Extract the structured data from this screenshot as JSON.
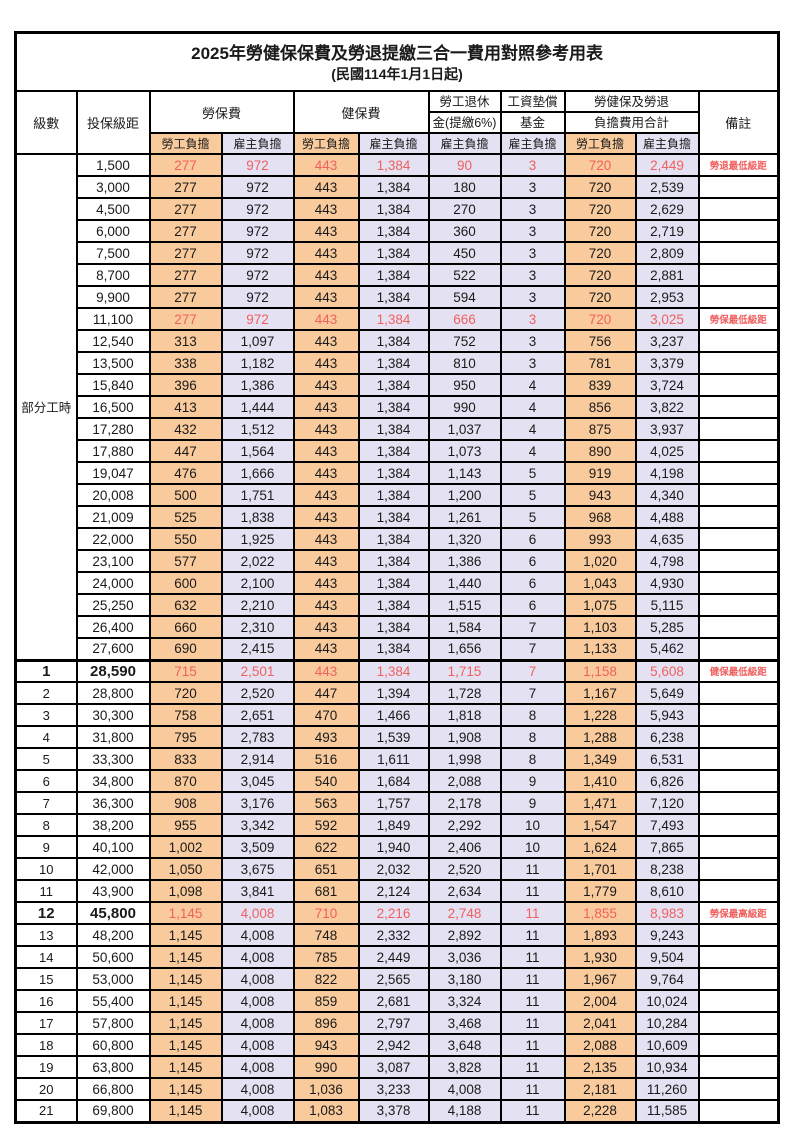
{
  "title": "2025年勞健保保費及勞退提繳三合一費用對照參考用表",
  "subtitle": "(民國114年1月1日起)",
  "colors": {
    "employee_bg": "#f9cb9c",
    "employer_bg": "#e4e2f2",
    "highlight_red": "#f15f5f",
    "border": "#000000"
  },
  "header": {
    "level_label": "級數",
    "salary_label": "投保級距",
    "labor_label": "勞保費",
    "health_label": "健保費",
    "pension_l1": "勞工退休",
    "pension_l2": "金(提繳6%)",
    "fund_l1": "工資墊償",
    "fund_l2": "基金",
    "total_l1": "勞健保及勞退",
    "total_l2": "負擔費用合計",
    "remark_label": "備註",
    "employee_label": "勞工負擔",
    "employer_label": "雇主負擔"
  },
  "part_time_label": "部分工時",
  "part_time_rowspan": 23,
  "rows": [
    {
      "salary": "1,500",
      "v": [
        "277",
        "972",
        "443",
        "1,384",
        "90",
        "3",
        "720",
        "2,449"
      ],
      "red": true,
      "remark": "勞退最低級距"
    },
    {
      "salary": "3,000",
      "v": [
        "277",
        "972",
        "443",
        "1,384",
        "180",
        "3",
        "720",
        "2,539"
      ]
    },
    {
      "salary": "4,500",
      "v": [
        "277",
        "972",
        "443",
        "1,384",
        "270",
        "3",
        "720",
        "2,629"
      ]
    },
    {
      "salary": "6,000",
      "v": [
        "277",
        "972",
        "443",
        "1,384",
        "360",
        "3",
        "720",
        "2,719"
      ]
    },
    {
      "salary": "7,500",
      "v": [
        "277",
        "972",
        "443",
        "1,384",
        "450",
        "3",
        "720",
        "2,809"
      ]
    },
    {
      "salary": "8,700",
      "v": [
        "277",
        "972",
        "443",
        "1,384",
        "522",
        "3",
        "720",
        "2,881"
      ]
    },
    {
      "salary": "9,900",
      "v": [
        "277",
        "972",
        "443",
        "1,384",
        "594",
        "3",
        "720",
        "2,953"
      ]
    },
    {
      "salary": "11,100",
      "v": [
        "277",
        "972",
        "443",
        "1,384",
        "666",
        "3",
        "720",
        "3,025"
      ],
      "red": true,
      "remark": "勞保最低級距"
    },
    {
      "salary": "12,540",
      "v": [
        "313",
        "1,097",
        "443",
        "1,384",
        "752",
        "3",
        "756",
        "3,237"
      ]
    },
    {
      "salary": "13,500",
      "v": [
        "338",
        "1,182",
        "443",
        "1,384",
        "810",
        "3",
        "781",
        "3,379"
      ]
    },
    {
      "salary": "15,840",
      "v": [
        "396",
        "1,386",
        "443",
        "1,384",
        "950",
        "4",
        "839",
        "3,724"
      ]
    },
    {
      "salary": "16,500",
      "v": [
        "413",
        "1,444",
        "443",
        "1,384",
        "990",
        "4",
        "856",
        "3,822"
      ]
    },
    {
      "salary": "17,280",
      "v": [
        "432",
        "1,512",
        "443",
        "1,384",
        "1,037",
        "4",
        "875",
        "3,937"
      ]
    },
    {
      "salary": "17,880",
      "v": [
        "447",
        "1,564",
        "443",
        "1,384",
        "1,073",
        "4",
        "890",
        "4,025"
      ]
    },
    {
      "salary": "19,047",
      "v": [
        "476",
        "1,666",
        "443",
        "1,384",
        "1,143",
        "5",
        "919",
        "4,198"
      ]
    },
    {
      "salary": "20,008",
      "v": [
        "500",
        "1,751",
        "443",
        "1,384",
        "1,200",
        "5",
        "943",
        "4,340"
      ]
    },
    {
      "salary": "21,009",
      "v": [
        "525",
        "1,838",
        "443",
        "1,384",
        "1,261",
        "5",
        "968",
        "4,488"
      ]
    },
    {
      "salary": "22,000",
      "v": [
        "550",
        "1,925",
        "443",
        "1,384",
        "1,320",
        "6",
        "993",
        "4,635"
      ]
    },
    {
      "salary": "23,100",
      "v": [
        "577",
        "2,022",
        "443",
        "1,384",
        "1,386",
        "6",
        "1,020",
        "4,798"
      ]
    },
    {
      "salary": "24,000",
      "v": [
        "600",
        "2,100",
        "443",
        "1,384",
        "1,440",
        "6",
        "1,043",
        "4,930"
      ]
    },
    {
      "salary": "25,250",
      "v": [
        "632",
        "2,210",
        "443",
        "1,384",
        "1,515",
        "6",
        "1,075",
        "5,115"
      ]
    },
    {
      "salary": "26,400",
      "v": [
        "660",
        "2,310",
        "443",
        "1,384",
        "1,584",
        "7",
        "1,103",
        "5,285"
      ]
    },
    {
      "salary": "27,600",
      "v": [
        "690",
        "2,415",
        "443",
        "1,384",
        "1,656",
        "7",
        "1,133",
        "5,462"
      ]
    },
    {
      "level": "1",
      "salary": "28,590",
      "v": [
        "715",
        "2,501",
        "443",
        "1,384",
        "1,715",
        "7",
        "1,158",
        "5,608"
      ],
      "red": true,
      "em": true,
      "thick_top": true,
      "remark": "健保最低級距"
    },
    {
      "level": "2",
      "salary": "28,800",
      "v": [
        "720",
        "2,520",
        "447",
        "1,394",
        "1,728",
        "7",
        "1,167",
        "5,649"
      ]
    },
    {
      "level": "3",
      "salary": "30,300",
      "v": [
        "758",
        "2,651",
        "470",
        "1,466",
        "1,818",
        "8",
        "1,228",
        "5,943"
      ]
    },
    {
      "level": "4",
      "salary": "31,800",
      "v": [
        "795",
        "2,783",
        "493",
        "1,539",
        "1,908",
        "8",
        "1,288",
        "6,238"
      ]
    },
    {
      "level": "5",
      "salary": "33,300",
      "v": [
        "833",
        "2,914",
        "516",
        "1,611",
        "1,998",
        "8",
        "1,349",
        "6,531"
      ]
    },
    {
      "level": "6",
      "salary": "34,800",
      "v": [
        "870",
        "3,045",
        "540",
        "1,684",
        "2,088",
        "9",
        "1,410",
        "6,826"
      ]
    },
    {
      "level": "7",
      "salary": "36,300",
      "v": [
        "908",
        "3,176",
        "563",
        "1,757",
        "2,178",
        "9",
        "1,471",
        "7,120"
      ]
    },
    {
      "level": "8",
      "salary": "38,200",
      "v": [
        "955",
        "3,342",
        "592",
        "1,849",
        "2,292",
        "10",
        "1,547",
        "7,493"
      ]
    },
    {
      "level": "9",
      "salary": "40,100",
      "v": [
        "1,002",
        "3,509",
        "622",
        "1,940",
        "2,406",
        "10",
        "1,624",
        "7,865"
      ]
    },
    {
      "level": "10",
      "salary": "42,000",
      "v": [
        "1,050",
        "3,675",
        "651",
        "2,032",
        "2,520",
        "11",
        "1,701",
        "8,238"
      ]
    },
    {
      "level": "11",
      "salary": "43,900",
      "v": [
        "1,098",
        "3,841",
        "681",
        "2,124",
        "2,634",
        "11",
        "1,779",
        "8,610"
      ]
    },
    {
      "level": "12",
      "salary": "45,800",
      "v": [
        "1,145",
        "4,008",
        "710",
        "2,216",
        "2,748",
        "11",
        "1,855",
        "8,983"
      ],
      "red": true,
      "em": true,
      "remark": "勞保最高級距"
    },
    {
      "level": "13",
      "salary": "48,200",
      "v": [
        "1,145",
        "4,008",
        "748",
        "2,332",
        "2,892",
        "11",
        "1,893",
        "9,243"
      ]
    },
    {
      "level": "14",
      "salary": "50,600",
      "v": [
        "1,145",
        "4,008",
        "785",
        "2,449",
        "3,036",
        "11",
        "1,930",
        "9,504"
      ]
    },
    {
      "level": "15",
      "salary": "53,000",
      "v": [
        "1,145",
        "4,008",
        "822",
        "2,565",
        "3,180",
        "11",
        "1,967",
        "9,764"
      ]
    },
    {
      "level": "16",
      "salary": "55,400",
      "v": [
        "1,145",
        "4,008",
        "859",
        "2,681",
        "3,324",
        "11",
        "2,004",
        "10,024"
      ]
    },
    {
      "level": "17",
      "salary": "57,800",
      "v": [
        "1,145",
        "4,008",
        "896",
        "2,797",
        "3,468",
        "11",
        "2,041",
        "10,284"
      ]
    },
    {
      "level": "18",
      "salary": "60,800",
      "v": [
        "1,145",
        "4,008",
        "943",
        "2,942",
        "3,648",
        "11",
        "2,088",
        "10,609"
      ]
    },
    {
      "level": "19",
      "salary": "63,800",
      "v": [
        "1,145",
        "4,008",
        "990",
        "3,087",
        "3,828",
        "11",
        "2,135",
        "10,934"
      ]
    },
    {
      "level": "20",
      "salary": "66,800",
      "v": [
        "1,145",
        "4,008",
        "1,036",
        "3,233",
        "4,008",
        "11",
        "2,181",
        "11,260"
      ]
    },
    {
      "level": "21",
      "salary": "69,800",
      "v": [
        "1,145",
        "4,008",
        "1,083",
        "3,378",
        "4,188",
        "11",
        "2,228",
        "11,585"
      ]
    }
  ]
}
